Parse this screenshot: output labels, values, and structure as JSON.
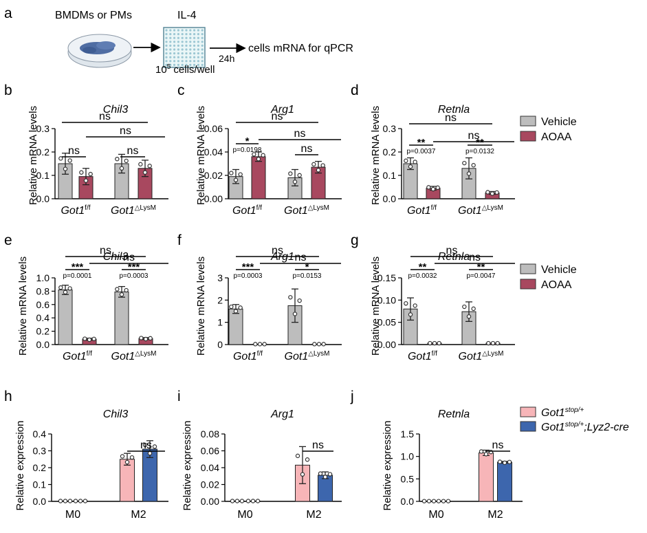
{
  "colors": {
    "vehicle": "#bdbdbd",
    "aoaa": "#a8485f",
    "stop": "#f7b5b8",
    "cre": "#3d66ad"
  },
  "schematic": {
    "panel": "a",
    "source_label": "BMDMs or PMs",
    "treatment": "IL-4",
    "time": "24h",
    "readout": "cells mRNA for qPCR",
    "density_base": "10",
    "density_exp": "5",
    "density_rest": " cells/well"
  },
  "legends": {
    "top": [
      {
        "label": "Vehicle",
        "color": "#bdbdbd"
      },
      {
        "label": "AOAA",
        "color": "#a8485f"
      }
    ],
    "mid": [
      {
        "label": "Vehicle",
        "color": "#bdbdbd"
      },
      {
        "label": "AOAA",
        "color": "#a8485f"
      }
    ],
    "bottom": [
      {
        "base": "Got1",
        "sup": "stop/+",
        "suffix": "",
        "color": "#f7b5b8"
      },
      {
        "base": "Got1",
        "sup": "stop/+",
        "suffix": ";Lyz2-cre",
        "color": "#3d66ad"
      }
    ]
  },
  "chart_data": [
    {
      "panel": "b",
      "type": "bar",
      "title": "Chil3",
      "ylabel": "Relative mRNA levels",
      "ylim": [
        0,
        0.3
      ],
      "yticks": [
        "0.0",
        "0.1",
        "0.2",
        "0.3"
      ],
      "groups": [
        {
          "base": "Got1",
          "sup": "f/f"
        },
        {
          "base": "Got1",
          "sup": "△LysM"
        }
      ],
      "series": [
        {
          "name": "Vehicle",
          "values": [
            0.15,
            0.15
          ],
          "err": [
            0.045,
            0.04
          ]
        },
        {
          "name": "AOAA",
          "values": [
            0.095,
            0.13
          ],
          "err": [
            0.035,
            0.035
          ]
        }
      ],
      "annotations": [
        {
          "text": "ns"
        },
        {
          "text": "ns"
        },
        {
          "text": "ns"
        },
        {
          "text": "ns"
        }
      ]
    },
    {
      "panel": "c",
      "type": "bar",
      "title": "Arg1",
      "ylabel": "Relative mRNA levels",
      "ylim": [
        0,
        0.06
      ],
      "yticks": [
        "0.00",
        "0.02",
        "0.04",
        "0.06"
      ],
      "groups": [
        {
          "base": "Got1",
          "sup": "f/f"
        },
        {
          "base": "Got1",
          "sup": "△LysM"
        }
      ],
      "series": [
        {
          "name": "Vehicle",
          "values": [
            0.019,
            0.018
          ],
          "err": [
            0.006,
            0.007
          ]
        },
        {
          "name": "AOAA",
          "values": [
            0.036,
            0.027
          ],
          "err": [
            0.004,
            0.005
          ]
        }
      ],
      "annotations": [
        {
          "text": "ns"
        },
        {
          "text": "ns"
        },
        {
          "text": "ns"
        },
        {
          "text": "*"
        },
        {
          "text": "p=0.0198"
        }
      ]
    },
    {
      "panel": "d",
      "type": "bar",
      "title": "Retnla",
      "ylabel": "Relative mRNA levels",
      "ylim": [
        0,
        0.3
      ],
      "yticks": [
        "0.0",
        "0.1",
        "0.2",
        "0.3"
      ],
      "groups": [
        {
          "base": "Got1",
          "sup": "f/f"
        },
        {
          "base": "Got1",
          "sup": "△LysM"
        }
      ],
      "series": [
        {
          "name": "Vehicle",
          "values": [
            0.15,
            0.13
          ],
          "err": [
            0.025,
            0.045
          ]
        },
        {
          "name": "AOAA",
          "values": [
            0.045,
            0.025
          ],
          "err": [
            0.008,
            0.006
          ]
        }
      ],
      "annotations": [
        {
          "text": "ns"
        },
        {
          "text": "ns"
        },
        {
          "text": "**"
        },
        {
          "text": "p=0.0037"
        },
        {
          "text": "**"
        },
        {
          "text": "p=0.0132"
        }
      ]
    },
    {
      "panel": "e",
      "type": "bar",
      "title": "Chil3",
      "ylabel": "Relative mRNA levels",
      "ylim": [
        0,
        1.0
      ],
      "yticks": [
        "0.0",
        "0.2",
        "0.4",
        "0.6",
        "0.8",
        "1.0"
      ],
      "groups": [
        {
          "base": "Got1",
          "sup": "f/f"
        },
        {
          "base": "Got1",
          "sup": "△LysM"
        }
      ],
      "series": [
        {
          "name": "Vehicle",
          "values": [
            0.82,
            0.79
          ],
          "err": [
            0.07,
            0.08
          ]
        },
        {
          "name": "AOAA",
          "values": [
            0.08,
            0.09
          ],
          "err": [
            0.015,
            0.015
          ]
        }
      ],
      "annotations": [
        {
          "text": "ns"
        },
        {
          "text": "ns"
        },
        {
          "text": "***"
        },
        {
          "text": "p=0.0001"
        },
        {
          "text": "***"
        },
        {
          "text": "p=0.0003"
        }
      ]
    },
    {
      "panel": "f",
      "type": "bar",
      "title": "Arg1",
      "ylabel": "Relative mRNA levels",
      "ylim": [
        0,
        3
      ],
      "yticks": [
        "0",
        "1",
        "2",
        "3"
      ],
      "groups": [
        {
          "base": "Got1",
          "sup": "f/f"
        },
        {
          "base": "Got1",
          "sup": "△LysM"
        }
      ],
      "series": [
        {
          "name": "Vehicle",
          "values": [
            1.6,
            1.75
          ],
          "err": [
            0.2,
            0.75
          ]
        },
        {
          "name": "AOAA",
          "values": [
            0.02,
            0.02
          ],
          "err": [
            0,
            0
          ]
        }
      ],
      "annotations": [
        {
          "text": "ns"
        },
        {
          "text": "ns"
        },
        {
          "text": "***"
        },
        {
          "text": "p=0.0003"
        },
        {
          "text": "*"
        },
        {
          "text": "p=0.0153"
        }
      ]
    },
    {
      "panel": "g",
      "type": "bar",
      "title": "Retnla",
      "ylabel": "Relative mRNA levels",
      "ylim": [
        0,
        0.15
      ],
      "yticks": [
        "0.00",
        "0.05",
        "0.10",
        "0.15"
      ],
      "groups": [
        {
          "base": "Got1",
          "sup": "f/f"
        },
        {
          "base": "Got1",
          "sup": "△LysM"
        }
      ],
      "series": [
        {
          "name": "Vehicle",
          "values": [
            0.08,
            0.074
          ],
          "err": [
            0.025,
            0.022
          ]
        },
        {
          "name": "AOAA",
          "values": [
            0.003,
            0.003
          ],
          "err": [
            0,
            0
          ]
        }
      ],
      "annotations": [
        {
          "text": "ns"
        },
        {
          "text": "ns"
        },
        {
          "text": "**"
        },
        {
          "text": "p=0.0032"
        },
        {
          "text": "**"
        },
        {
          "text": "p=0.0047"
        }
      ]
    },
    {
      "panel": "h",
      "type": "bar",
      "title": "Chil3",
      "ylabel": "Relative expression",
      "ylim": [
        0,
        0.4
      ],
      "yticks": [
        "0.0",
        "0.1",
        "0.2",
        "0.3",
        "0.4"
      ],
      "categories": [
        "M0",
        "M2"
      ],
      "series": [
        {
          "name": "Got1 stop/+",
          "values": [
            0.002,
            0.25
          ],
          "err": [
            0,
            0.035
          ]
        },
        {
          "name": "Got1 stop/+;Lyz2-cre",
          "values": [
            0.002,
            0.31
          ],
          "err": [
            0,
            0.05
          ]
        }
      ],
      "annotations": [
        {
          "text": "ns"
        }
      ]
    },
    {
      "panel": "i",
      "type": "bar",
      "title": "Arg1",
      "ylabel": "Relative expression",
      "ylim": [
        0,
        0.08
      ],
      "yticks": [
        "0.00",
        "0.02",
        "0.04",
        "0.06",
        "0.08"
      ],
      "categories": [
        "M0",
        "M2"
      ],
      "series": [
        {
          "name": "Got1 stop/+",
          "values": [
            0.0004,
            0.043
          ],
          "err": [
            0,
            0.022
          ]
        },
        {
          "name": "Got1 stop/+;Lyz2-cre",
          "values": [
            0.0004,
            0.031
          ],
          "err": [
            0,
            0.004
          ]
        }
      ],
      "annotations": [
        {
          "text": "ns"
        }
      ]
    },
    {
      "panel": "j",
      "type": "bar",
      "title": "Retnla",
      "ylabel": "Relative expression",
      "ylim": [
        0,
        1.5
      ],
      "yticks": [
        "0.0",
        "0.5",
        "1.0",
        "1.5"
      ],
      "categories": [
        "M0",
        "M2"
      ],
      "series": [
        {
          "name": "Got1 stop/+",
          "values": [
            0.005,
            1.08
          ],
          "err": [
            0,
            0.06
          ]
        },
        {
          "name": "Got1 stop/+;Lyz2-cre",
          "values": [
            0.005,
            0.87
          ],
          "err": [
            0,
            0.02
          ]
        }
      ],
      "annotations": [
        {
          "text": "ns"
        }
      ]
    }
  ]
}
